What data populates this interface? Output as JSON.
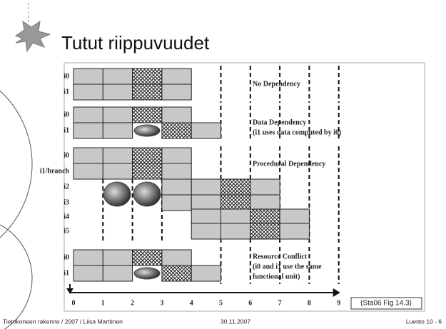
{
  "header": {
    "title": "Tutut riippuvuudet"
  },
  "figure": {
    "row_labels": [
      "i0",
      "i1",
      "i0",
      "i1",
      "i0",
      "i1/branch",
      "i2",
      "i3",
      "i4",
      "i5",
      "i0",
      "i1"
    ],
    "annotations": [
      "No Dependency",
      "Data Dependency",
      "(i1 uses data computed by i0)",
      "Procedural Dependency",
      "Resource Conflict",
      "(i0 and i1 use the same",
      "functional unit)"
    ],
    "time_axis": [
      0,
      1,
      2,
      3,
      4,
      5,
      6,
      7,
      8,
      9
    ],
    "source": "(Sta06 Fig 14.3)"
  },
  "footer": {
    "left": "Tietokoneen rakenne / 2007 / Liisa Marttinen",
    "center": "30.11.2007",
    "right": "Luento 10 - 6"
  }
}
